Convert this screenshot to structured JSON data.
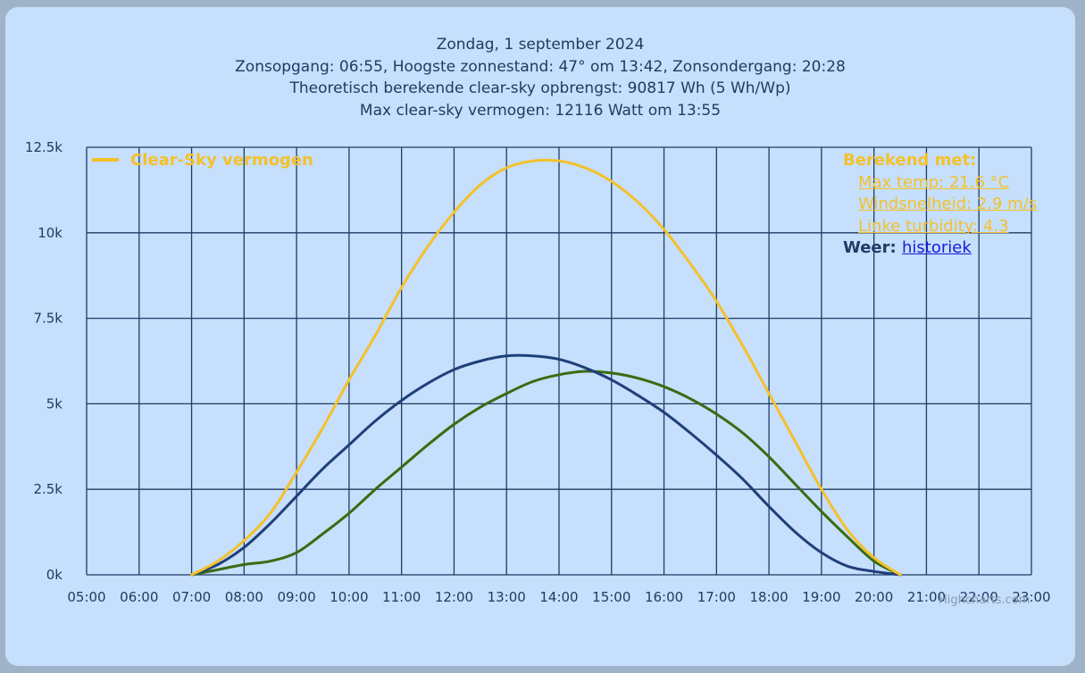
{
  "chart_data": {
    "type": "line",
    "title_lines": [
      "Zondag, 1 september 2024",
      "Zonsopgang: 06:55, Hoogste zonnestand: 47° om 13:42, Zonsondergang: 20:28",
      "Theoretisch berekende clear-sky opbrengst: 90817 Wh (5 Wh/Wp)",
      "Max clear-sky vermogen: 12116 Watt om 13:55"
    ],
    "x_ticks": [
      "05:00",
      "06:00",
      "07:00",
      "08:00",
      "09:00",
      "10:00",
      "11:00",
      "12:00",
      "13:00",
      "14:00",
      "15:00",
      "16:00",
      "17:00",
      "18:00",
      "19:00",
      "20:00",
      "21:00",
      "22:00",
      "23:00"
    ],
    "y_ticks": [
      "0k",
      "2.5k",
      "5k",
      "7.5k",
      "10k",
      "12.5k"
    ],
    "xlim": [
      5,
      23
    ],
    "ylim": [
      0,
      12500
    ],
    "grid": true,
    "legend_position": "top-left",
    "series": [
      {
        "name": "Clear-Sky vermogen",
        "color": "#f5c02a",
        "x": [
          7.0,
          7.5,
          8.0,
          8.5,
          9.0,
          9.5,
          10.0,
          10.5,
          11.0,
          11.5,
          12.0,
          12.5,
          13.0,
          13.5,
          14.0,
          14.5,
          15.0,
          15.5,
          16.0,
          16.5,
          17.0,
          17.5,
          18.0,
          18.5,
          19.0,
          19.5,
          20.0,
          20.5
        ],
        "y": [
          0,
          400,
          1000,
          1800,
          3000,
          4300,
          5700,
          7000,
          8400,
          9600,
          10600,
          11400,
          11900,
          12100,
          12100,
          11900,
          11500,
          10900,
          10100,
          9100,
          8000,
          6700,
          5300,
          3900,
          2500,
          1300,
          500,
          0
        ]
      },
      {
        "name": "",
        "color": "#1f3f7a",
        "x": [
          7.0,
          7.5,
          8.0,
          8.5,
          9.0,
          9.5,
          10.0,
          10.5,
          11.0,
          11.5,
          12.0,
          12.5,
          13.0,
          13.5,
          14.0,
          14.5,
          15.0,
          15.5,
          16.0,
          16.5,
          17.0,
          17.5,
          18.0,
          18.5,
          19.0,
          19.5,
          20.0,
          20.5
        ],
        "y": [
          0,
          300,
          800,
          1500,
          2300,
          3100,
          3800,
          4500,
          5100,
          5600,
          6000,
          6250,
          6400,
          6400,
          6300,
          6050,
          5700,
          5250,
          4750,
          4150,
          3500,
          2800,
          2000,
          1250,
          650,
          250,
          100,
          0
        ]
      },
      {
        "name": "",
        "color": "#3a6b12",
        "x": [
          7.0,
          7.5,
          8.0,
          8.5,
          9.0,
          9.5,
          10.0,
          10.5,
          11.0,
          11.5,
          12.0,
          12.5,
          13.0,
          13.5,
          14.0,
          14.5,
          15.0,
          15.5,
          16.0,
          16.5,
          17.0,
          17.5,
          18.0,
          18.5,
          19.0,
          19.5,
          20.0,
          20.5
        ],
        "y": [
          0,
          150,
          300,
          400,
          650,
          1200,
          1800,
          2500,
          3150,
          3800,
          4400,
          4900,
          5300,
          5650,
          5850,
          5950,
          5900,
          5750,
          5500,
          5150,
          4700,
          4150,
          3450,
          2650,
          1850,
          1100,
          400,
          0
        ]
      }
    ]
  },
  "info_box": {
    "heading": "Berekend met:",
    "max_temp": "Max temp: 21.6 °C",
    "wind": "Windsnelheid: 2.9 m/s",
    "linke": "Linke turbidity: 4.3",
    "weer_label": "Weer:",
    "weer_link": "historiek"
  },
  "credit": "Highcharts.com"
}
